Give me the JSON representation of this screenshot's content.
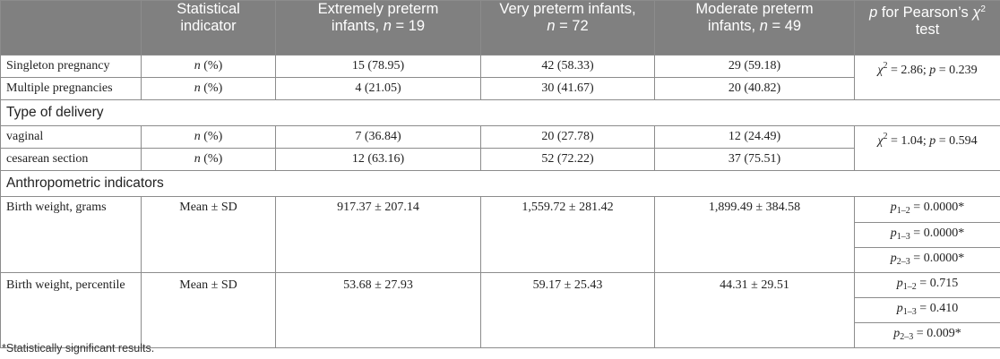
{
  "header": {
    "col0": "",
    "col1": "Statistical indicator",
    "col2": "Extremely preterm infants, n = 19",
    "col3": "Very preterm infants, n = 72",
    "col4": "Moderate preterm infants, n = 49",
    "col5": "p for Pearson’s χ2 test"
  },
  "rows": {
    "singleton": {
      "label": "Singleton pregnancy",
      "indicator": "n (%)",
      "extreme": "15 (78.95)",
      "very": "42 (58.33)",
      "moderate": "29 (59.18)"
    },
    "multiple": {
      "label": "Multiple pregnancies",
      "indicator": "n (%)",
      "extreme": "4 (21.05)",
      "very": "30 (41.67)",
      "moderate": "20 (40.82)"
    },
    "pregnancy_test": "χ2 = 2.86; p = 0.239",
    "delivery_section": "Type of delivery",
    "vaginal": {
      "label": "vaginal",
      "indicator": "n (%)",
      "extreme": "7 (36.84)",
      "very": "20 (27.78)",
      "moderate": "12 (24.49)"
    },
    "cesarean": {
      "label": "cesarean section",
      "indicator": "n (%)",
      "extreme": "12 (63.16)",
      "very": "52 (72.22)",
      "moderate": "37 (75.51)"
    },
    "delivery_test": "χ2 = 1.04; p = 0.594",
    "anthro_section": "Anthropometric indicators",
    "bw_grams": {
      "label": "Birth weight, grams",
      "indicator": "Mean ± SD",
      "extreme": "917.37 ± 207.14",
      "very": "1,559.72 ± 281.42",
      "moderate": "1,899.49 ± 384.58",
      "p12": "p1–2 = 0.0000*",
      "p13": "p1–3 = 0.0000*",
      "p23": "p2–3 = 0.0000*"
    },
    "bw_percentile": {
      "label": "Birth weight, percentile",
      "indicator": "Mean ± SD",
      "extreme": "53.68 ± 27.93",
      "very": "59.17 ± 25.43",
      "moderate": "44.31 ± 29.51",
      "p12": "p1–2 = 0.715",
      "p13": "p1–3 = 0.410",
      "p23": "p2–3 = 0.009*"
    }
  },
  "footnote": "*Statistically significant results."
}
